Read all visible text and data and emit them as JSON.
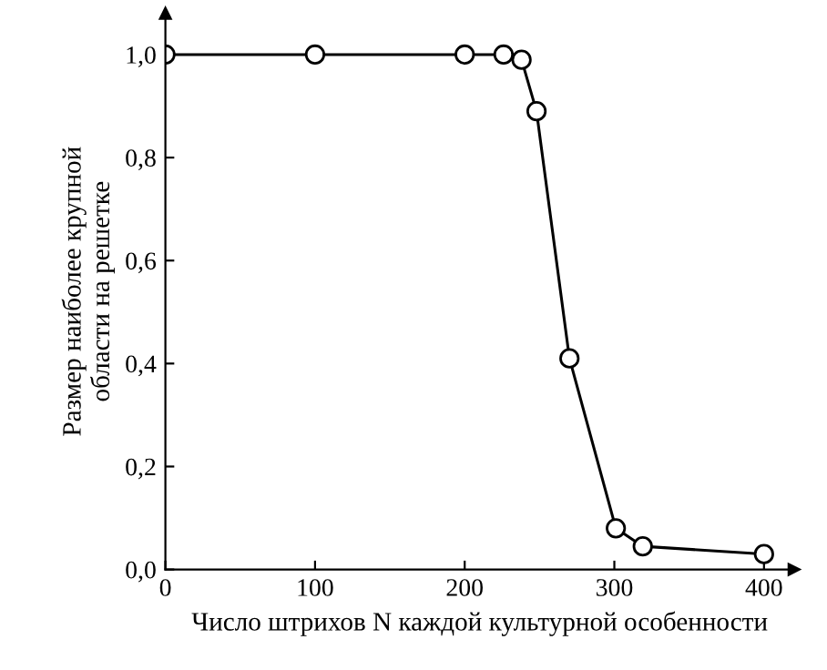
{
  "chart_data": {
    "type": "line",
    "xlabel": "Число штрихов N каждой культурной особенности",
    "ylabel": "Размер наиболее крупной\nобласти на решетке",
    "x": [
      0,
      100,
      200,
      226,
      238,
      248,
      270,
      301,
      319,
      400
    ],
    "series": [
      {
        "color": "#000000",
        "values": [
          1.0,
          1.0,
          1.0,
          1.0,
          0.99,
          0.89,
          0.41,
          0.08,
          0.045,
          0.03
        ]
      }
    ],
    "xlim": [
      0,
      420
    ],
    "ylim": [
      0,
      1.08
    ],
    "xticks": [
      0,
      100,
      200,
      300,
      400
    ],
    "yticks": [
      {
        "value": 0,
        "label": "0,0"
      },
      {
        "value": 0.2,
        "label": "0,2"
      },
      {
        "value": 0.4,
        "label": "0,4"
      },
      {
        "value": 0.6,
        "label": "0,6"
      },
      {
        "value": 0.8,
        "label": "0,8"
      },
      {
        "value": 1.0,
        "label": "1,0"
      }
    ],
    "marker": "circle",
    "line_style": "solid",
    "grid": false,
    "legend": false
  }
}
